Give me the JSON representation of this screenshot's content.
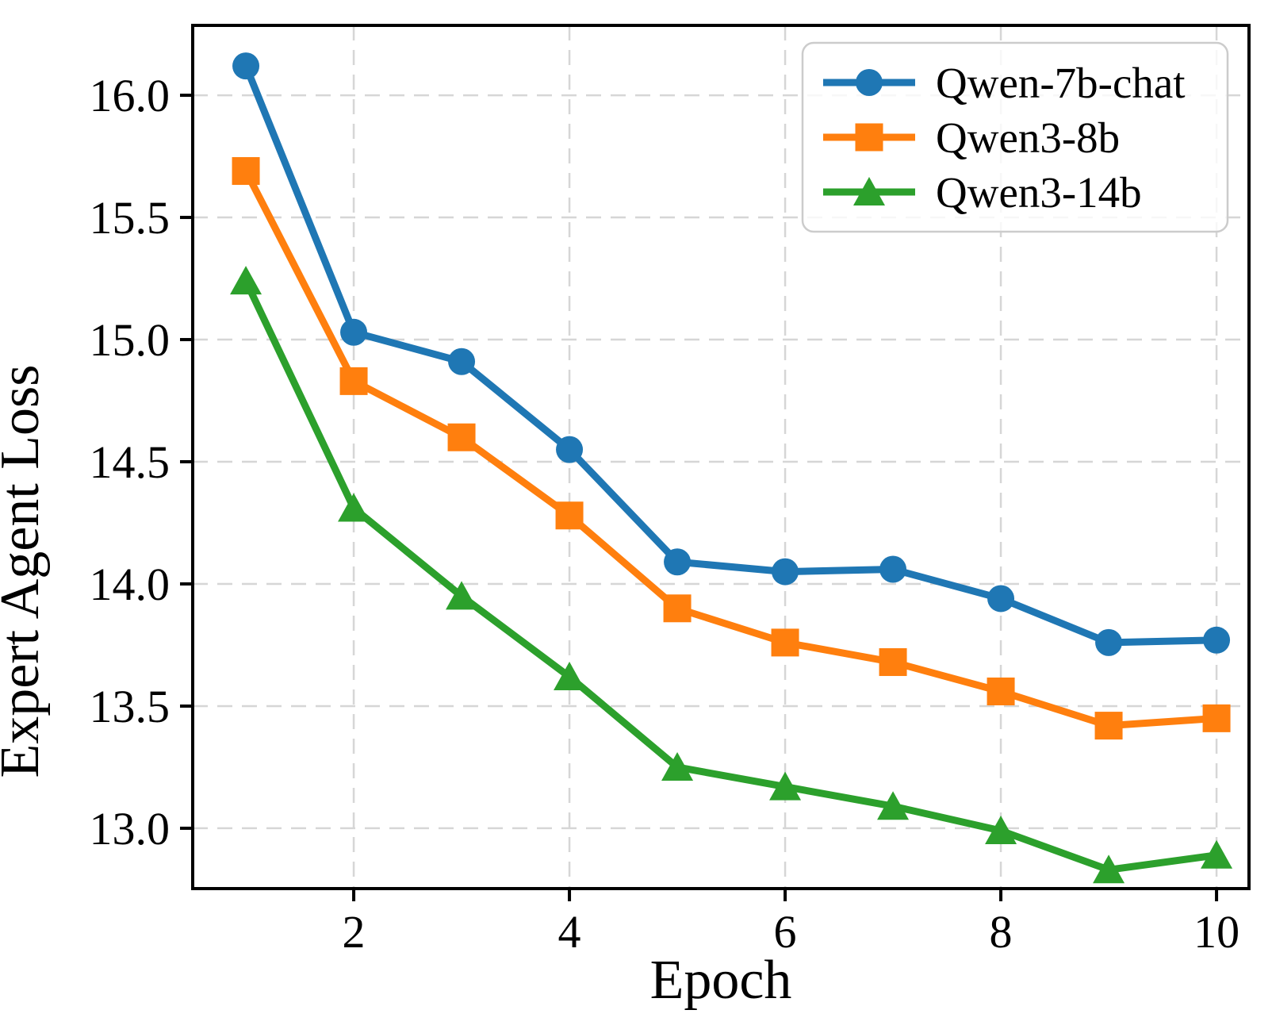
{
  "figure": {
    "background": "#ffffff",
    "text_color": "#000000",
    "spine_color": "#000000",
    "grid_color": "#d6d6d6",
    "legend_border_color": "#cccccc"
  },
  "chart_data": {
    "type": "line",
    "title": "",
    "xlabel": "Epoch",
    "ylabel": "Expert Agent Loss",
    "x": [
      1,
      2,
      3,
      4,
      5,
      6,
      7,
      8,
      9,
      10
    ],
    "series": [
      {
        "name": "Qwen-7b-chat",
        "color": "#1f77b4",
        "marker": "circle",
        "values": [
          16.12,
          15.03,
          14.91,
          14.55,
          14.09,
          14.05,
          14.06,
          13.94,
          13.76,
          13.77
        ]
      },
      {
        "name": "Qwen3-8b",
        "color": "#ff7f0e",
        "marker": "square",
        "values": [
          15.69,
          14.83,
          14.6,
          14.28,
          13.9,
          13.76,
          13.68,
          13.56,
          13.42,
          13.45
        ]
      },
      {
        "name": "Qwen3-14b",
        "color": "#2ca02c",
        "marker": "triangle",
        "values": [
          15.24,
          14.31,
          13.95,
          13.62,
          13.25,
          13.17,
          13.09,
          12.99,
          12.83,
          12.89
        ]
      }
    ],
    "xlim": [
      0.507,
      10.301
    ],
    "ylim": [
      12.753,
      16.286
    ],
    "xticks": [
      2,
      4,
      6,
      8,
      10
    ],
    "xtick_labels": [
      "2",
      "4",
      "6",
      "8",
      "10"
    ],
    "yticks": [
      13.0,
      13.5,
      14.0,
      14.5,
      15.0,
      15.5,
      16.0
    ],
    "ytick_labels": [
      "13.0",
      "13.5",
      "14.0",
      "14.5",
      "15.0",
      "15.5",
      "16.0"
    ],
    "grid": true,
    "grid_style": "dashed",
    "legend": {
      "position": "upper right",
      "entries": [
        "Qwen-7b-chat",
        "Qwen3-8b",
        "Qwen3-14b"
      ]
    }
  }
}
